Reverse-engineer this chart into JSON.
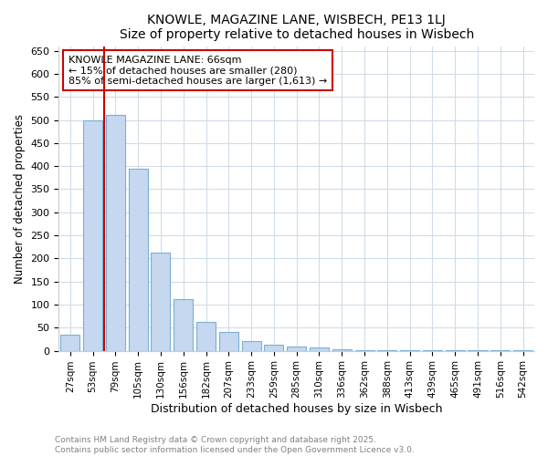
{
  "title": "KNOWLE, MAGAZINE LANE, WISBECH, PE13 1LJ",
  "subtitle": "Size of property relative to detached houses in Wisbech",
  "xlabel": "Distribution of detached houses by size in Wisbech",
  "ylabel": "Number of detached properties",
  "categories": [
    "27sqm",
    "53sqm",
    "79sqm",
    "105sqm",
    "130sqm",
    "156sqm",
    "182sqm",
    "207sqm",
    "233sqm",
    "259sqm",
    "285sqm",
    "310sqm",
    "336sqm",
    "362sqm",
    "388sqm",
    "413sqm",
    "439sqm",
    "465sqm",
    "491sqm",
    "516sqm",
    "542sqm"
  ],
  "values": [
    35,
    500,
    510,
    395,
    213,
    112,
    63,
    40,
    20,
    13,
    10,
    8,
    4,
    1,
    1,
    1,
    1,
    1,
    1,
    1,
    2
  ],
  "bar_color": "#c5d8f0",
  "bar_edge_color": "#7bafd4",
  "annotation_box_color": "#cc0000",
  "annotation_line_color": "#cc0000",
  "annotation_text_line1": "KNOWLE MAGAZINE LANE: 66sqm",
  "annotation_text_line2": "← 15% of detached houses are smaller (280)",
  "annotation_text_line3": "85% of semi-detached houses are larger (1,613) →",
  "ylim": [
    0,
    660
  ],
  "yticks": [
    0,
    50,
    100,
    150,
    200,
    250,
    300,
    350,
    400,
    450,
    500,
    550,
    600,
    650
  ],
  "footer_line1": "Contains HM Land Registry data © Crown copyright and database right 2025.",
  "footer_line2": "Contains public sector information licensed under the Open Government Licence v3.0.",
  "background_color": "#ffffff",
  "plot_background_color": "#ffffff",
  "grid_color": "#d0dce8"
}
